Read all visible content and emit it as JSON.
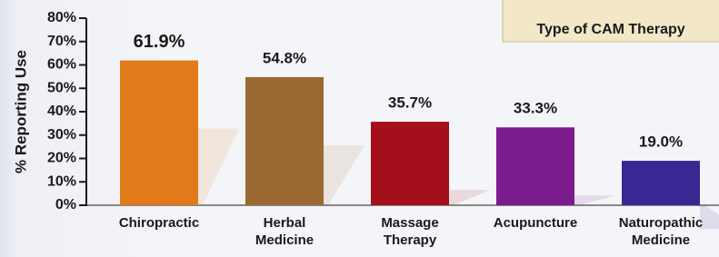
{
  "chart_data": {
    "type": "bar",
    "y_label": "% Reporting Use",
    "x_label": "Type of CAM Therapy",
    "categories": [
      "Chiropractic",
      "Herbal Medicine",
      "Massage Therapy",
      "Acupuncture",
      "Naturopathic Medicine"
    ],
    "values": [
      61.9,
      54.8,
      35.7,
      33.3,
      19.0
    ],
    "value_labels": [
      "61.9%",
      "54.8%",
      "35.7%",
      "33.3%",
      "19.0%"
    ],
    "colors": [
      "#e07a1b",
      "#9a6a32",
      "#a50f1b",
      "#7b1b8c",
      "#3b2793"
    ],
    "ylim": [
      0,
      80
    ],
    "yticks": [
      {
        "value": 0,
        "label": "0%"
      },
      {
        "value": 10,
        "label": "10%"
      },
      {
        "value": 20,
        "label": "20%"
      },
      {
        "value": 30,
        "label": "30%"
      },
      {
        "value": 40,
        "label": "40%"
      },
      {
        "value": 50,
        "label": "50%"
      },
      {
        "value": 60,
        "label": "60%"
      },
      {
        "value": 70,
        "label": "70%"
      },
      {
        "value": 80,
        "label": "80%"
      }
    ]
  }
}
